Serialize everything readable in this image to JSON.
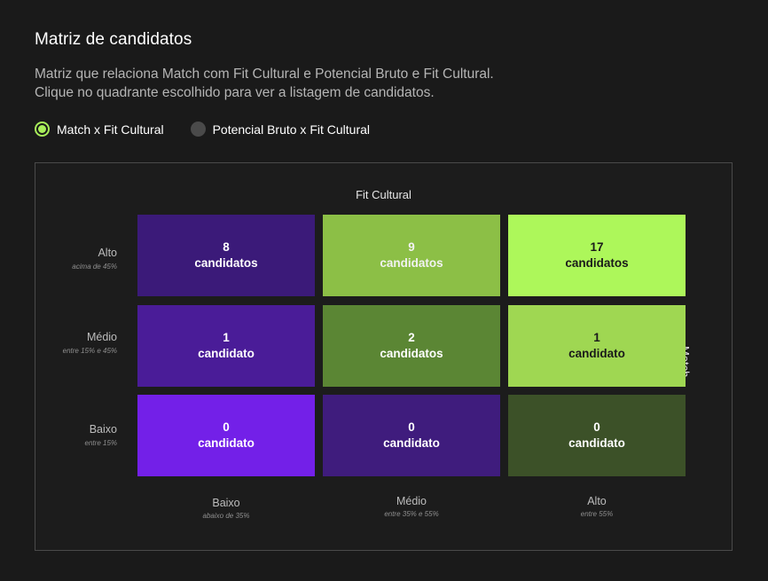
{
  "header": {
    "title": "Matriz de candidatos",
    "description_line1": "Matriz que relaciona Match com Fit Cultural e Potencial Bruto e Fit Cultural.",
    "description_line2": "Clique no quadrante escolhido para ver a listagem de candidatos."
  },
  "radios": [
    {
      "label": "Match x Fit Cultural",
      "selected": true
    },
    {
      "label": "Potencial Bruto x Fit Cultural",
      "selected": false
    }
  ],
  "matrix": {
    "column_axis_title": "Fit Cultural",
    "row_axis_title": "Match",
    "rows": [
      {
        "label": "Alto",
        "sublabel": "acima de 45%"
      },
      {
        "label": "Médio",
        "sublabel": "entre 15% e 45%"
      },
      {
        "label": "Baixo",
        "sublabel": "entre 15%"
      }
    ],
    "columns": [
      {
        "label": "Baixo",
        "sublabel": "abaixo de 35%"
      },
      {
        "label": "Médio",
        "sublabel": "entre 35% e 55%"
      },
      {
        "label": "Alto",
        "sublabel": "entre 55%"
      }
    ],
    "cells": [
      [
        {
          "count": "8",
          "unit": "candidatos",
          "bg": "#3b1a79",
          "fg": "#ffffff"
        },
        {
          "count": "9",
          "unit": "candidatos",
          "bg": "#8cbf46",
          "fg": "#f2f2f2"
        },
        {
          "count": "17",
          "unit": "candidatos",
          "bg": "#adf75a",
          "fg": "#1a1a1a"
        }
      ],
      [
        {
          "count": "1",
          "unit": "candidato",
          "bg": "#4a1c98",
          "fg": "#ffffff"
        },
        {
          "count": "2",
          "unit": "candidatos",
          "bg": "#5b8634",
          "fg": "#ffffff"
        },
        {
          "count": "1",
          "unit": "candidato",
          "bg": "#9fd752",
          "fg": "#1a1a1a"
        }
      ],
      [
        {
          "count": "0",
          "unit": "candidato",
          "bg": "#7320e8",
          "fg": "#ffffff"
        },
        {
          "count": "0",
          "unit": "candidato",
          "bg": "#3f1c7d",
          "fg": "#ffffff"
        },
        {
          "count": "0",
          "unit": "candidato",
          "bg": "#3c5128",
          "fg": "#ffffff"
        }
      ]
    ]
  }
}
